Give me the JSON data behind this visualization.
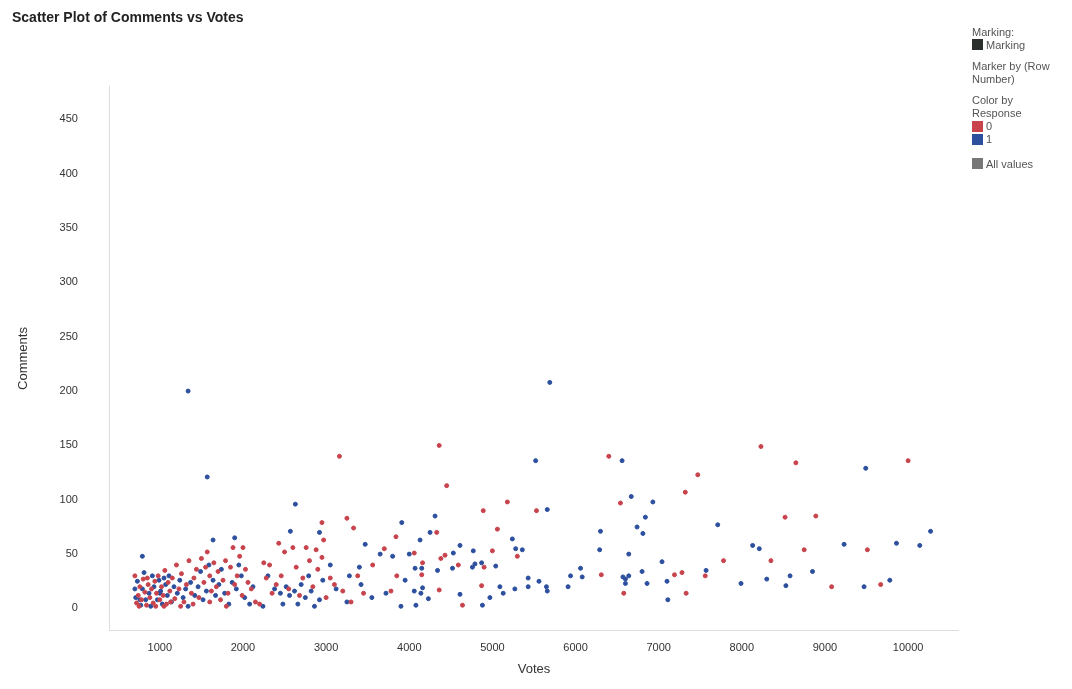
{
  "chart_data": {
    "type": "scatter",
    "title": "Scatter Plot of Comments vs Votes",
    "xlabel": "Votes",
    "ylabel": "Comments",
    "legend_title": "Color by Response",
    "annotations": [
      "Marking:",
      "Marking",
      "Marker by (Row Number)",
      "All values"
    ],
    "legend": "top right",
    "marker": "circle",
    "grid": false,
    "xlim": [
      400,
      10600
    ],
    "xticks": [
      1000,
      2000,
      3000,
      4000,
      5000,
      6000,
      7000,
      8000,
      9000,
      10000
    ],
    "ylim": [
      -20,
      480
    ],
    "yticks": [
      0,
      50,
      100,
      150,
      200,
      250,
      300,
      350,
      400,
      450
    ],
    "series": [
      {
        "name": "0",
        "color": "#c8434c",
        "x": [
          720,
          740,
          760,
          780,
          800,
          820,
          840,
          860,
          880,
          900,
          920,
          940,
          960,
          980,
          1000,
          1020,
          1040,
          1060,
          1080,
          1100,
          1120,
          1150,
          1180,
          1200,
          1230,
          1260,
          1290,
          1320,
          1350,
          1380,
          1410,
          1440,
          1470,
          1500,
          1530,
          1550,
          1570,
          1600,
          1620,
          1650,
          1680,
          1700,
          1730,
          1760,
          1790,
          1820,
          1850,
          1880,
          1900,
          1930,
          1960,
          1990,
          2000,
          2030,
          2060,
          2100,
          2150,
          2200,
          2250,
          2280,
          2320,
          2350,
          2400,
          2430,
          2460,
          2500,
          2550,
          2600,
          2640,
          2680,
          2720,
          2760,
          2800,
          2840,
          2880,
          2900,
          2950,
          3000,
          3050,
          3100,
          3200,
          3300,
          3380,
          3450,
          3560,
          3700,
          3780,
          3850,
          700,
          750,
          850,
          950,
          1050,
          1130,
          1250,
          1400,
          1600,
          1800,
          3250,
          3330,
          2950,
          2970,
          3840,
          3160,
          4360,
          4450,
          8230,
          8650,
          10000,
          6400,
          7470,
          7320,
          6540,
          7780,
          4330,
          4890,
          5180,
          5530,
          5060,
          5300,
          5000,
          4430,
          4380,
          4060,
          4160,
          4150,
          4900,
          4590,
          4360,
          4640,
          4870,
          6310,
          6580,
          7190,
          7280,
          7330,
          7560,
          8520,
          8890,
          8750,
          9510,
          8350,
          9080,
          9670
        ],
        "values": [
          5,
          12,
          20,
          8,
          27,
          15,
          3,
          22,
          10,
          18,
          5,
          25,
          14,
          30,
          8,
          20,
          12,
          35,
          4,
          24,
          16,
          28,
          9,
          40,
          18,
          32,
          6,
          22,
          44,
          14,
          28,
          36,
          10,
          46,
          24,
          38,
          52,
          30,
          16,
          42,
          20,
          34,
          8,
          26,
          44,
          14,
          38,
          56,
          22,
          30,
          48,
          12,
          56,
          36,
          24,
          18,
          6,
          4,
          42,
          28,
          40,
          14,
          22,
          60,
          30,
          52,
          18,
          56,
          38,
          12,
          28,
          56,
          44,
          20,
          54,
          36,
          47,
          10,
          28,
          22,
          16,
          6,
          30,
          14,
          40,
          55,
          16,
          30,
          30,
          2,
          28,
          2,
          2,
          6,
          2,
          4,
          6,
          2,
          83,
          74,
          79,
          63,
          66,
          140,
          150,
          113,
          149,
          134,
          136,
          140,
          123,
          107,
          97,
          44,
          70,
          90,
          98,
          90,
          73,
          48,
          53,
          49,
          46,
          51,
          42,
          31,
          38,
          40,
          17,
          3,
          21,
          31,
          14,
          31,
          33,
          14,
          30,
          84,
          85,
          54,
          54,
          44,
          20,
          22
        ]
      },
      {
        "name": "1",
        "color": "#2c4f9e",
        "x": [
          710,
          730,
          770,
          790,
          810,
          830,
          870,
          890,
          910,
          930,
          970,
          990,
          1010,
          1030,
          1050,
          1070,
          1090,
          1110,
          1140,
          1170,
          1210,
          1240,
          1280,
          1310,
          1340,
          1370,
          1420,
          1460,
          1490,
          1520,
          1560,
          1590,
          1640,
          1670,
          1710,
          1740,
          1780,
          1830,
          1870,
          1920,
          1950,
          1980,
          2020,
          2080,
          2120,
          2240,
          2300,
          2380,
          2450,
          2480,
          2520,
          2560,
          2620,
          2660,
          2700,
          2750,
          2790,
          2820,
          2860,
          2920,
          2960,
          3050,
          3120,
          3250,
          3280,
          3400,
          3420,
          3550,
          3650,
          3720,
          3800,
          3900,
          3950,
          700,
          760,
          1000,
          1340,
          1570,
          5690,
          5520,
          9490,
          6560,
          2630,
          2920,
          2570,
          1640,
          1900,
          3910,
          3470,
          790,
          6670,
          6930,
          6840,
          6740,
          6810,
          6300,
          6290,
          7710,
          4310,
          4250,
          4130,
          5660,
          5240,
          5280,
          5360,
          4610,
          4770,
          4530,
          4000,
          4070,
          4150,
          4340,
          4520,
          4760,
          4790,
          4870,
          5040,
          4060,
          4160,
          4140,
          4230,
          4080,
          4610,
          4880,
          4970,
          5090,
          5130,
          5270,
          5430,
          5430,
          5560,
          5650,
          5660,
          5910,
          5940,
          6060,
          6080,
          6570,
          6640,
          6600,
          6600,
          6640,
          6800,
          6860,
          7040,
          7100,
          7110,
          7570,
          7990,
          8300,
          8580,
          8530,
          8850,
          9470,
          9780,
          8130,
          8210,
          9230,
          9860,
          10140,
          10270
        ],
        "values": [
          10,
          25,
          3,
          18,
          33,
          8,
          14,
          2,
          30,
          20,
          8,
          26,
          16,
          4,
          28,
          22,
          12,
          30,
          6,
          20,
          14,
          26,
          10,
          18,
          2,
          24,
          12,
          20,
          34,
          8,
          16,
          40,
          26,
          12,
          22,
          36,
          14,
          4,
          24,
          18,
          40,
          30,
          10,
          4,
          20,
          2,
          30,
          18,
          14,
          4,
          20,
          12,
          16,
          4,
          22,
          10,
          30,
          16,
          2,
          8,
          26,
          40,
          18,
          6,
          30,
          38,
          22,
          10,
          50,
          14,
          48,
          2,
          26,
          18,
          8,
          14,
          200,
          121,
          208,
          136,
          129,
          136,
          96,
          70,
          71,
          63,
          65,
          79,
          59,
          48,
          103,
          98,
          84,
          75,
          69,
          71,
          54,
          77,
          85,
          70,
          63,
          91,
          64,
          55,
          54,
          58,
          53,
          51,
          50,
          37,
          37,
          35,
          37,
          38,
          41,
          42,
          39,
          16,
          19,
          14,
          9,
          3,
          13,
          3,
          10,
          20,
          14,
          18,
          28,
          20,
          25,
          20,
          16,
          20,
          30,
          37,
          29,
          29,
          30,
          27,
          23,
          50,
          34,
          23,
          43,
          25,
          8,
          35,
          23,
          27,
          30,
          21,
          34,
          20,
          26,
          58,
          55,
          59,
          60,
          58,
          71
        ]
      }
    ]
  }
}
